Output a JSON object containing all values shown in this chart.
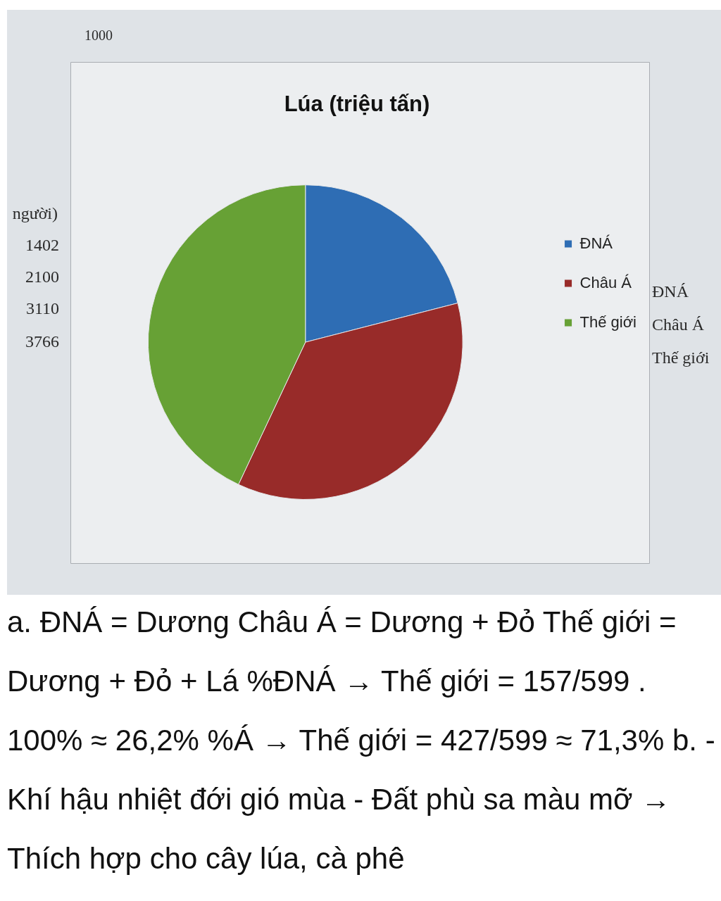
{
  "chart_data": {
    "type": "pie",
    "title": "Lúa (triệu tấn)",
    "categories": [
      "ĐNÁ",
      "Châu Á",
      "Thế giới"
    ],
    "values": [
      21,
      36,
      43
    ],
    "colors": [
      "#2e6db4",
      "#982b29",
      "#67a135"
    ],
    "legend": "right",
    "annotations": [
      "1000",
      "người)",
      "1402",
      "2100",
      "3110",
      "3766",
      "ĐNÁ",
      "Châu Á",
      "Thế giới",
      "a. ĐNÁ = Dương Châu Á = Dương + Đỏ Thế giới = Dương + Đỏ + Lá %ĐNÁ → Thế giới = 157/599 . 100% ≈ 26,2% %Á → Thế giới = 427/599 ≈ 71,3% b. - Khí hậu nhiệt đới gió mùa - Đất phù sa màu mỡ → Thích hợp cho cây lúa, cà phê"
    ]
  }
}
